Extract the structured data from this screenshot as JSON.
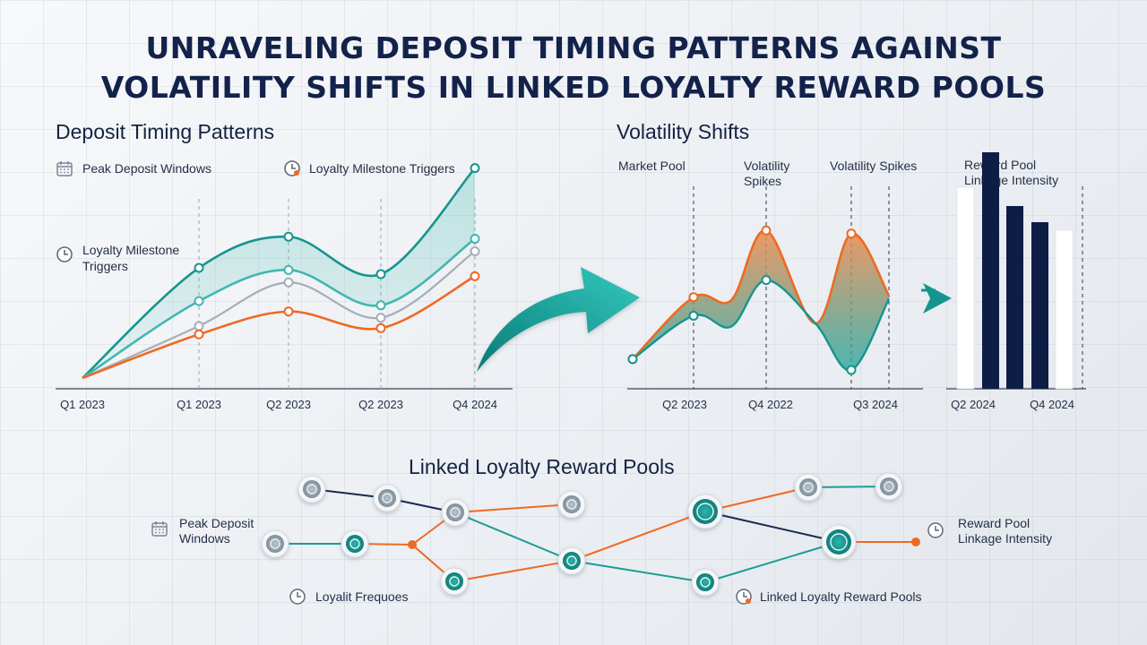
{
  "title": {
    "line1": "UNRAVELING DEPOSIT TIMING PATTERNS AGAINST",
    "line2": "VOLATILITY SHIFTS IN LINKED LOYALTY REWARD POOLS"
  },
  "colors": {
    "teal": "#16948f",
    "teal_light": "#3fb8b0",
    "gray": "#a7aeb8",
    "orange": "#ee6a23",
    "navy": "#0e1d45",
    "white_bar": "#ffffff"
  },
  "deposit": {
    "heading": "Deposit Timing Patterns",
    "annotations": {
      "peak_windows": "Peak Deposit Windows",
      "milestone_top": "Loyalty Milestone Triggers",
      "milestone_left_1": "Loyalty Milestone",
      "milestone_left_2": "Triggers"
    },
    "icons": {
      "peak_windows": "calendar-icon",
      "milestone_top": "clock-icon",
      "milestone_left": "clock-icon"
    }
  },
  "volatility": {
    "heading": "Volatility Shifts",
    "annotations": {
      "market_pool": "Market Pool",
      "spikes_1a": "Volatility",
      "spikes_1b": "Spikes",
      "spikes_2": "Volatility Spikes"
    }
  },
  "reward_bars": {
    "annotation_1": "Reward Pool",
    "annotation_2": "Linkage Intensity"
  },
  "network": {
    "heading": "Linked Loyalty Reward Pools",
    "labels": {
      "peak_1": "Peak Deposit",
      "peak_2": "Windows",
      "reward_1": "Reward Pool",
      "reward_2": "Linkage Intensity",
      "frequency": "Loyalit Frequoes",
      "linked": "Linked Loyalty Reward Pools"
    },
    "icons": {
      "peak": "calendar-icon",
      "reward": "clock-icon",
      "frequency": "clock-icon",
      "linked": "clock-icon"
    }
  },
  "chart_data": [
    {
      "type": "line",
      "title": "Deposit Timing Patterns",
      "xlabel": "",
      "ylabel": "",
      "categories": [
        "Q1 2023",
        "Q1 2023",
        "Q2 2023",
        "Q2 2023",
        "Q4 2024"
      ],
      "ylim": [
        0,
        100
      ],
      "grid": true,
      "series": [
        {
          "color": "#16948f",
          "values": [
            0,
            53,
            68,
            50,
            101
          ]
        },
        {
          "color": "#3fb8b0",
          "values": [
            0,
            37,
            52,
            35,
            67
          ]
        },
        {
          "color": "#a7aeb8",
          "values": [
            0,
            25,
            46,
            29,
            61
          ]
        },
        {
          "color": "#ee6a23",
          "values": [
            0,
            21,
            32,
            24,
            49
          ]
        }
      ]
    },
    {
      "type": "area",
      "title": "Volatility Shifts",
      "xlabel": "",
      "ylabel": "",
      "categories": [
        "Q2 2023",
        "Q4 2022",
        "Q3 2024"
      ],
      "ylim": [
        0,
        100
      ],
      "x": [
        0,
        1,
        2,
        3,
        4,
        5,
        6,
        7
      ],
      "series": [
        {
          "color": "#ee6a23",
          "values": [
            7,
            47,
            45,
            90,
            30,
            88,
            48,
            48
          ]
        },
        {
          "color": "#16948f",
          "values": [
            7,
            35,
            28,
            58,
            30,
            0,
            46,
            46
          ]
        }
      ]
    },
    {
      "type": "bar",
      "title": "",
      "categories": [
        "Q2 2024",
        "",
        "",
        "",
        "Q4 2024"
      ],
      "values": [
        75,
        88,
        68,
        62,
        59
      ],
      "colors": [
        "#ffffff",
        "#0e1d45",
        "#0e1d45",
        "#0e1d45",
        "#ffffff"
      ],
      "ylim": [
        0,
        100
      ]
    }
  ]
}
